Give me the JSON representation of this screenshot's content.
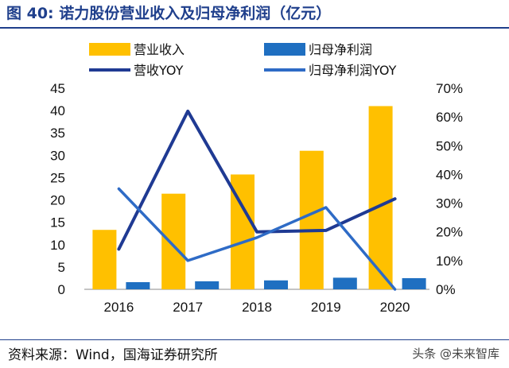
{
  "figure": {
    "title": "图 40:  诺力股份营业收入及归母净利润（亿元）",
    "source": "资料来源：Wind，国海证券研究所",
    "watermark": "头条 @未来智库"
  },
  "colors": {
    "revenue_bar": "#FFC000",
    "profit_bar": "#1F6FC1",
    "revenue_yoy": "#1F3A93",
    "profit_yoy": "#2E6BC6",
    "title": "#1F3F8C"
  },
  "chart_data": {
    "type": "bar",
    "title": "诺力股份营业收入及归母净利润（亿元）",
    "categories": [
      "2016",
      "2017",
      "2018",
      "2019",
      "2020"
    ],
    "series": [
      {
        "name": "营业收入",
        "kind": "bar",
        "axis": "left",
        "values": [
          13.3,
          21.4,
          25.7,
          31.0,
          41.0
        ]
      },
      {
        "name": "归母净利润",
        "kind": "bar",
        "axis": "left",
        "values": [
          1.6,
          1.8,
          2.0,
          2.6,
          2.5
        ]
      },
      {
        "name": "营收YOY",
        "kind": "line",
        "axis": "right",
        "values": [
          14,
          62,
          20,
          20.5,
          31.5
        ]
      },
      {
        "name": "归母净利润YOY",
        "kind": "line",
        "axis": "right",
        "values": [
          35,
          10,
          18,
          28.5,
          0
        ]
      }
    ],
    "y_left": {
      "min": 0,
      "max": 45,
      "step": 5,
      "ticks": [
        "0",
        "5",
        "10",
        "15",
        "20",
        "25",
        "30",
        "35",
        "40",
        "45"
      ]
    },
    "y_right": {
      "min": 0,
      "max": 70,
      "step": 10,
      "ticks": [
        "0%",
        "10%",
        "20%",
        "30%",
        "40%",
        "50%",
        "60%",
        "70%"
      ]
    },
    "legend_position": "top",
    "grid": false
  }
}
